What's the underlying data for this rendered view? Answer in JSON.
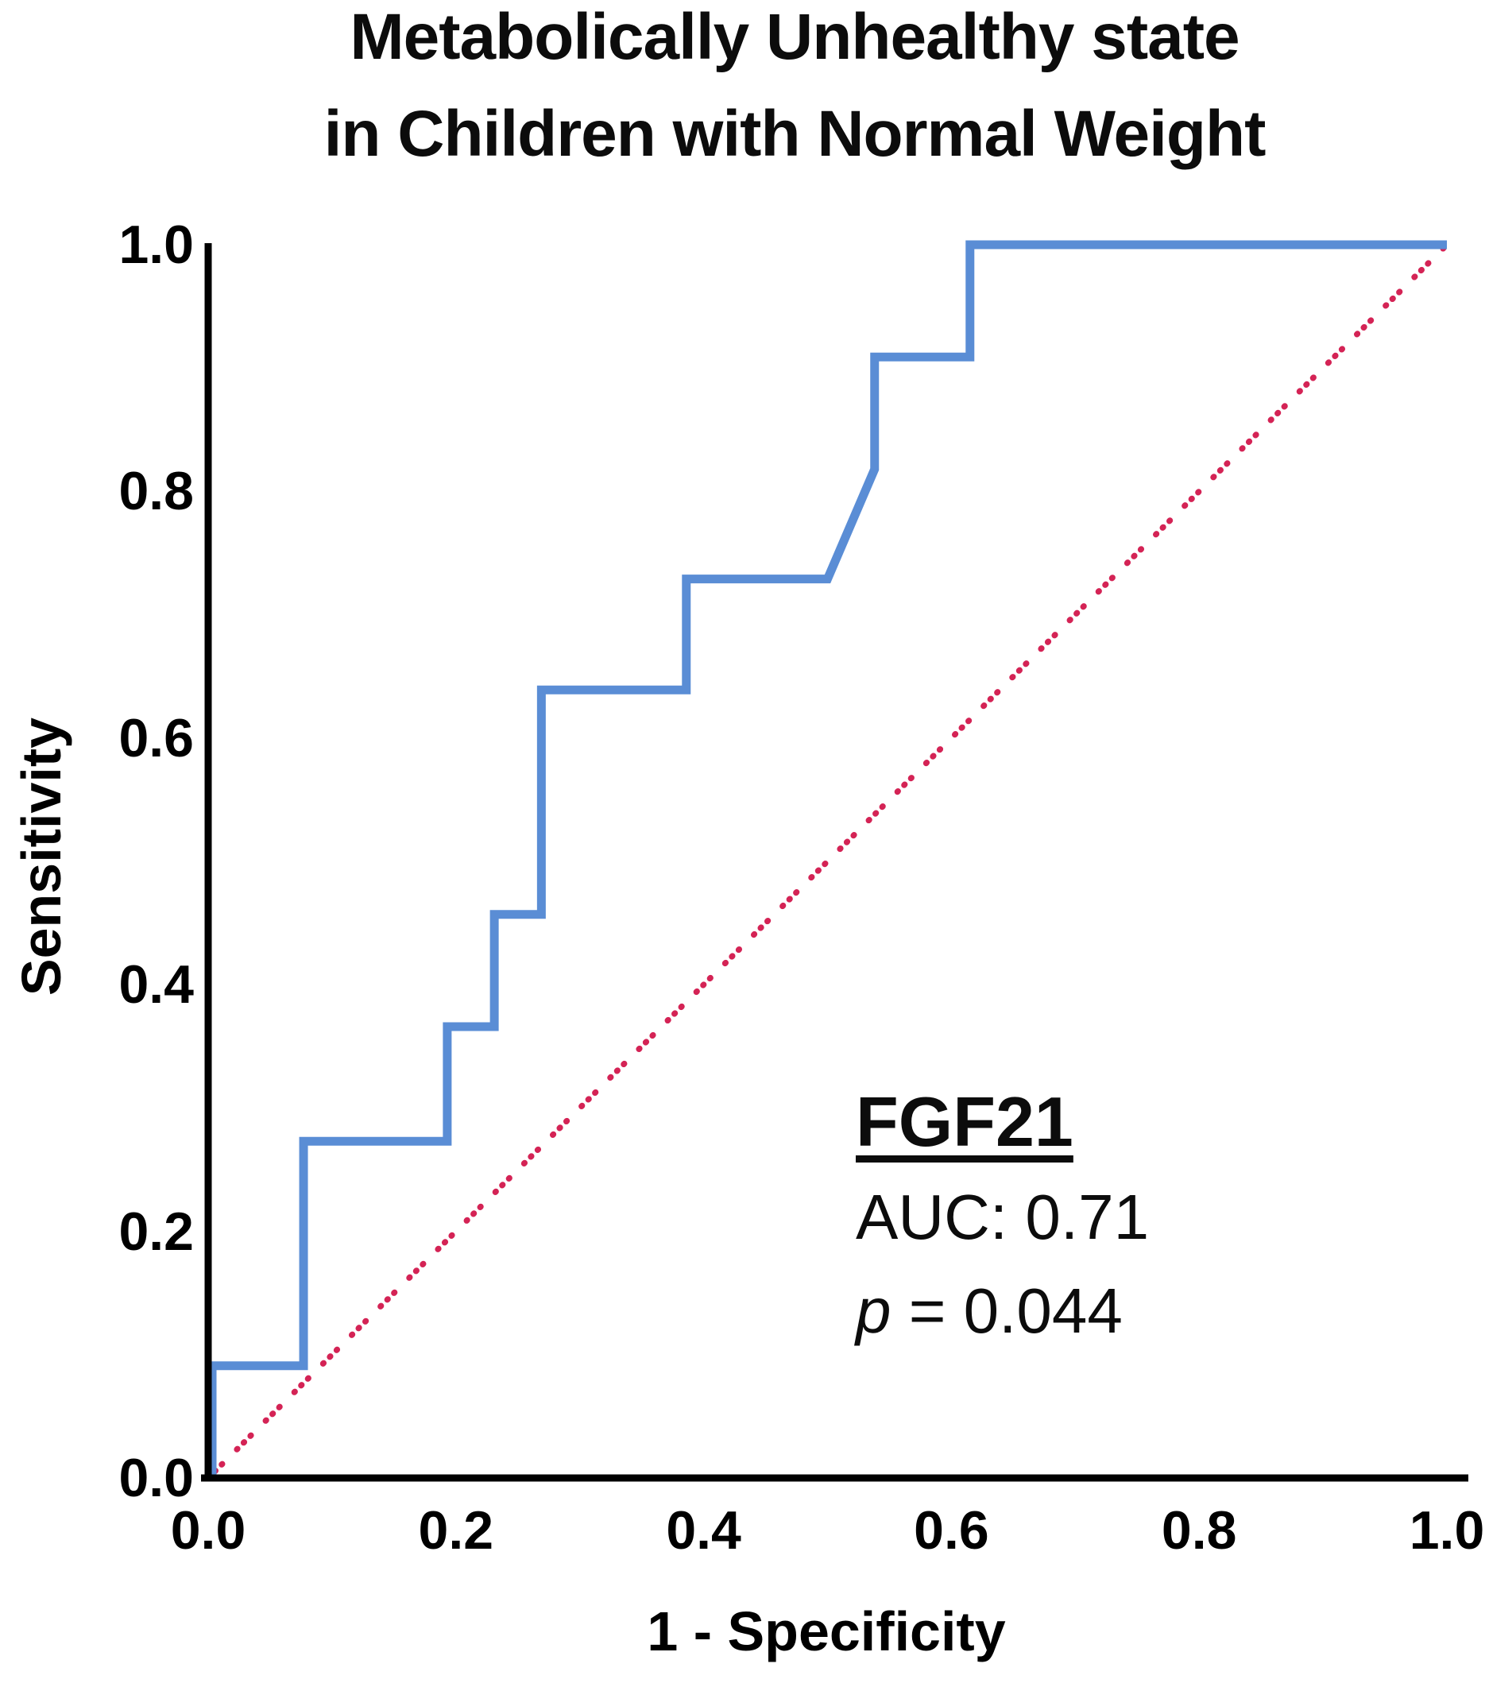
{
  "title": {
    "line1": "Metabolically Unhealthy state",
    "line2": "in Children with Normal Weight"
  },
  "annotation": {
    "marker_label": "FGF21",
    "auc_text": "AUC: 0.71",
    "p_symbol": "p",
    "p_value_text": " = 0.044"
  },
  "chart_data": {
    "type": "line",
    "title": "Metabolically Unhealthy state in Children with Normal Weight",
    "xlabel": "1 - Specificity",
    "ylabel": "Sensitivity",
    "xlim": [
      0.0,
      1.0
    ],
    "ylim": [
      0.0,
      1.0
    ],
    "grid": false,
    "legend": "none",
    "x_ticks": [
      "0.0",
      "0.2",
      "0.4",
      "0.6",
      "0.8",
      "1.0"
    ],
    "y_ticks": [
      "0.0",
      "0.2",
      "0.4",
      "0.6",
      "0.8",
      "1.0"
    ],
    "auc": 0.71,
    "p_value": 0.044,
    "colors": {
      "roc_curve": "#5a8dd5",
      "reference_line": "#d42355",
      "axes": "#000000",
      "text": "#0c0c0c"
    },
    "series": [
      {
        "name": "FGF21 ROC curve",
        "style": "solid",
        "color": "#5a8dd5",
        "points": [
          [
            0.0,
            0.0
          ],
          [
            0.0,
            0.091
          ],
          [
            0.077,
            0.091
          ],
          [
            0.077,
            0.273
          ],
          [
            0.193,
            0.273
          ],
          [
            0.193,
            0.366
          ],
          [
            0.231,
            0.366
          ],
          [
            0.231,
            0.457
          ],
          [
            0.269,
            0.457
          ],
          [
            0.269,
            0.639
          ],
          [
            0.386,
            0.639
          ],
          [
            0.386,
            0.729
          ],
          [
            0.5,
            0.729
          ],
          [
            0.538,
            0.818
          ],
          [
            0.538,
            0.909
          ],
          [
            0.615,
            0.909
          ],
          [
            0.615,
            1.0
          ],
          [
            1.0,
            1.0
          ]
        ]
      },
      {
        "name": "chance reference diagonal",
        "style": "dotted-dash",
        "color": "#d42355",
        "points": [
          [
            0.0,
            0.0
          ],
          [
            1.0,
            1.0
          ]
        ]
      }
    ]
  }
}
